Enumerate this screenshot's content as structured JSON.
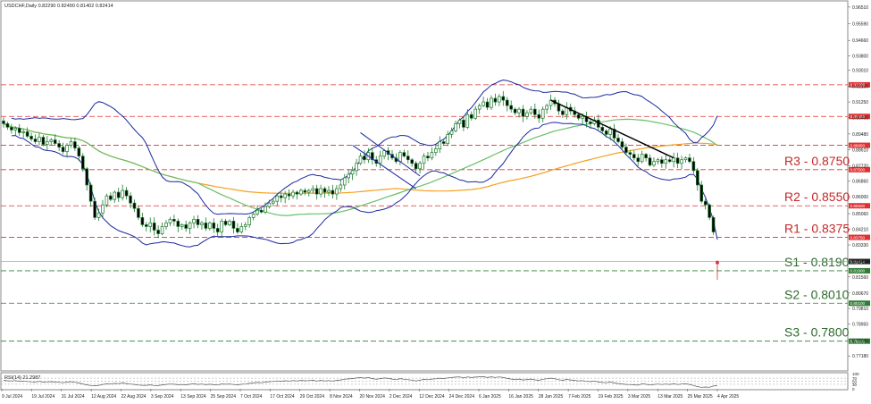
{
  "header": {
    "symbol_line": "USDCHF,Daily  0.82290 0.82490 0.81402 0.82414",
    "rsi_label": "RSI(14) 21.2987"
  },
  "chart_data": {
    "type": "candlestick",
    "title": "USDCHF,Daily",
    "ohlc_last": {
      "open": 0.8229,
      "high": 0.8249,
      "low": 0.81402,
      "close": 0.82414
    },
    "ylim": [
      0.764,
      0.968
    ],
    "y_ticks": [
      "0.96510",
      "0.95590",
      "0.94660",
      "0.93800",
      "0.93010",
      "0.92130",
      "0.91250",
      "0.90400",
      "0.89480",
      "0.88610",
      "0.87720",
      "0.86860",
      "0.86000",
      "0.85060",
      "0.84210",
      "0.83330",
      "0.82450",
      "0.81560",
      "0.80670",
      "0.79810",
      "0.78950",
      "0.78040",
      "0.77180"
    ],
    "x_ticks": [
      "9 Jul 2024",
      "19 Jul 2024",
      "31 Jul 2024",
      "12 Aug 2024",
      "22 Aug 2024",
      "3 Sep 2024",
      "13 Sep 2024",
      "25 Sep 2024",
      "7 Oct 2024",
      "17 Oct 2024",
      "29 Oct 2024",
      "8 Nov 2024",
      "20 Nov 2024",
      "2 Dec 2024",
      "12 Dec 2024",
      "24 Dec 2024",
      "6 Jan 2025",
      "16 Jan 2025",
      "28 Jan 2025",
      "7 Feb 2025",
      "19 Feb 2025",
      "3 Mar 2025",
      "13 Mar 2025",
      "25 Mar 2025",
      "4 Apr 2025"
    ],
    "current_price": "0.82414",
    "levels": [
      {
        "tag": "0.92200",
        "value": 0.922,
        "color": "#e03030"
      },
      {
        "tag": "0.90450",
        "value": 0.9045,
        "color": "#e03030"
      },
      {
        "tag": "0.88850",
        "value": 0.8885,
        "color": "#e03030"
      },
      {
        "tag": "0.87500",
        "value": 0.875,
        "color": "#e03030",
        "caption": "R3 - 0.8750"
      },
      {
        "tag": "0.85500",
        "value": 0.855,
        "color": "#e03030",
        "caption": "R2 - 0.8550"
      },
      {
        "tag": "0.83750",
        "value": 0.8375,
        "color": "#e03030",
        "caption": "R1 - 0.8375"
      },
      {
        "tag": "0.81900",
        "value": 0.819,
        "color": "#2e7d32",
        "caption": "S1 - 0.8190"
      },
      {
        "tag": "0.80100",
        "value": 0.801,
        "color": "#2e7d32",
        "caption": "S2 - 0.8010"
      },
      {
        "tag": "0.78000",
        "value": 0.78,
        "color": "#2e7d32",
        "caption": "S3 - 0.7800"
      }
    ],
    "series": [
      {
        "name": "Close",
        "closes": [
          0.9005,
          0.8985,
          0.897,
          0.898,
          0.8955,
          0.896,
          0.8935,
          0.892,
          0.8905,
          0.893,
          0.889,
          0.8905,
          0.8915,
          0.8895,
          0.8875,
          0.885,
          0.8885,
          0.8905,
          0.887,
          0.8825,
          0.8755,
          0.8665,
          0.8575,
          0.8485,
          0.851,
          0.8555,
          0.8605,
          0.8585,
          0.8625,
          0.8595,
          0.8635,
          0.8605,
          0.8565,
          0.8535,
          0.8485,
          0.8445,
          0.8435,
          0.8455,
          0.8415,
          0.8395,
          0.8435,
          0.8455,
          0.8475,
          0.8465,
          0.8435,
          0.8445,
          0.8425,
          0.8455,
          0.8475,
          0.8445,
          0.8455,
          0.8425,
          0.8455,
          0.8425,
          0.8405,
          0.8465,
          0.8445,
          0.8465,
          0.8425,
          0.8405,
          0.8435,
          0.8445,
          0.8485,
          0.8505,
          0.8525,
          0.8515,
          0.8545,
          0.8565,
          0.8575,
          0.8605,
          0.8595,
          0.8615,
          0.8605,
          0.8625,
          0.8615,
          0.8635,
          0.8625,
          0.8635,
          0.8645,
          0.8615,
          0.8645,
          0.8625,
          0.8635,
          0.8615,
          0.8645,
          0.8665,
          0.8705,
          0.8725,
          0.8745,
          0.8785,
          0.8825,
          0.8805,
          0.8845,
          0.8805,
          0.8785,
          0.8825,
          0.8855,
          0.8835,
          0.8815,
          0.8795,
          0.8845,
          0.8825,
          0.8805,
          0.8785,
          0.8755,
          0.8785,
          0.8825,
          0.8815,
          0.8845,
          0.8865,
          0.8905,
          0.8895,
          0.8945,
          0.8965,
          0.9005,
          0.9025,
          0.8985,
          0.9055,
          0.9035,
          0.9085,
          0.9105,
          0.9125,
          0.9095,
          0.9145,
          0.9125,
          0.9155,
          0.9135,
          0.9105,
          0.9085,
          0.9065,
          0.9085,
          0.9045,
          0.9065,
          0.9085,
          0.9055,
          0.9035,
          0.9085,
          0.9105,
          0.9135,
          0.9115,
          0.9075,
          0.9055,
          0.9095,
          0.9075,
          0.9055,
          0.9035,
          0.9045,
          0.9015,
          0.9005,
          0.9025,
          0.8985,
          0.8965,
          0.8945,
          0.8975,
          0.8925,
          0.8905,
          0.8875,
          0.8845,
          0.8835,
          0.8815,
          0.8795,
          0.8835,
          0.8815,
          0.8775,
          0.8795,
          0.8805,
          0.8785,
          0.8805,
          0.8795,
          0.8815,
          0.8785,
          0.8805,
          0.8815,
          0.8795,
          0.8745,
          0.8665,
          0.8575,
          0.8555,
          0.8485,
          0.8405,
          0.8241
        ]
      },
      {
        "name": "RSI",
        "values": [
          56,
          53,
          52,
          54,
          50,
          51,
          48,
          46,
          45,
          49,
          44,
          46,
          47,
          45,
          43,
          40,
          44,
          47,
          43,
          38,
          32,
          26,
          22,
          20,
          23,
          28,
          33,
          31,
          36,
          34,
          38,
          35,
          31,
          29,
          25,
          23,
          23,
          26,
          22,
          21,
          26,
          29,
          31,
          30,
          27,
          28,
          26,
          30,
          33,
          29,
          31,
          27,
          30,
          27,
          25,
          32,
          30,
          32,
          28,
          26,
          30,
          31,
          36,
          39,
          42,
          40,
          44,
          47,
          48,
          52,
          50,
          53,
          51,
          54,
          52,
          55,
          53,
          54,
          56,
          51,
          55,
          52,
          54,
          51,
          55,
          58,
          63,
          65,
          67,
          71,
          74,
          70,
          74,
          67,
          63,
          67,
          71,
          68,
          64,
          60,
          67,
          63,
          60,
          57,
          52,
          57,
          62,
          60,
          64,
          66,
          70,
          67,
          72,
          74,
          77,
          78,
          71,
          78,
          74,
          77,
          79,
          80,
          74,
          79,
          75,
          78,
          74,
          68,
          64,
          61,
          64,
          58,
          61,
          64,
          59,
          56,
          63,
          66,
          70,
          66,
          60,
          56,
          62,
          58,
          55,
          52,
          54,
          49,
          47,
          51,
          45,
          42,
          40,
          45,
          38,
          35,
          32,
          29,
          28,
          26,
          24,
          33,
          30,
          25,
          29,
          31,
          28,
          31,
          29,
          33,
          28,
          31,
          33,
          29,
          22,
          14,
          10,
          12,
          10,
          18,
          21
        ]
      }
    ],
    "rsi_ylim": [
      0,
      100
    ],
    "rsi_ticks": [
      "100",
      "70",
      "50",
      "30",
      "0"
    ],
    "colors": {
      "bull_fill": "#ffffff",
      "bear_fill": "#000000",
      "candle_stroke": "#1b7a2c",
      "bear_stroke": "#1b7a2c",
      "last_candle": "#d32f2f",
      "bollinger": "#1a2aa0",
      "ma_green": "#6abf69",
      "ma_orange": "#f5a020",
      "trend_navy": "#1a2aa0",
      "trend_black": "#000000",
      "resistance": "#e03030",
      "support": "#2e7d32",
      "rsi_line": "#555555",
      "rsi_grid": "#9a9a9a",
      "grid": "#dddddd",
      "axis_text": "#222222",
      "price_tag_bg": "#222222"
    }
  }
}
